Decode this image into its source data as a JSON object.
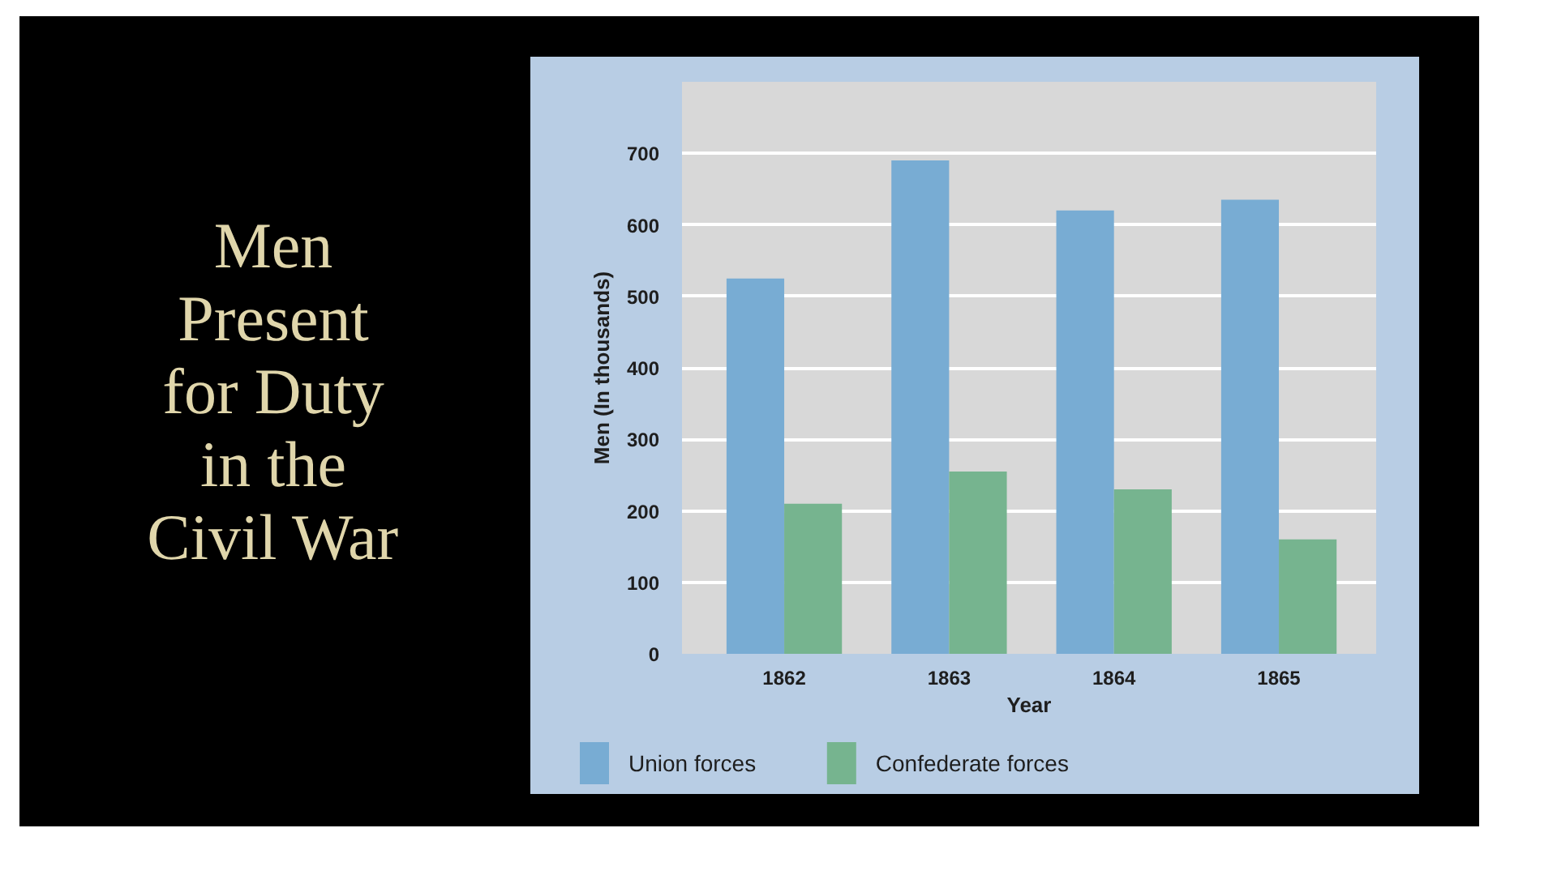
{
  "chart_data": {
    "type": "bar",
    "title": "Men Present for Duty in the Civil War",
    "xlabel": "Year",
    "ylabel": "Men (In thousands)",
    "categories": [
      "1862",
      "1863",
      "1864",
      "1865"
    ],
    "series": [
      {
        "name": "Union forces",
        "color": "#78acd3",
        "values": [
          525,
          690,
          620,
          635
        ]
      },
      {
        "name": "Confederate forces",
        "color": "#76b48f",
        "values": [
          210,
          255,
          230,
          160
        ]
      }
    ],
    "ylim": [
      0,
      800
    ],
    "yticks": [
      0,
      100,
      200,
      300,
      400,
      500,
      600,
      700
    ],
    "grid": "y",
    "legend": "bottom"
  }
}
